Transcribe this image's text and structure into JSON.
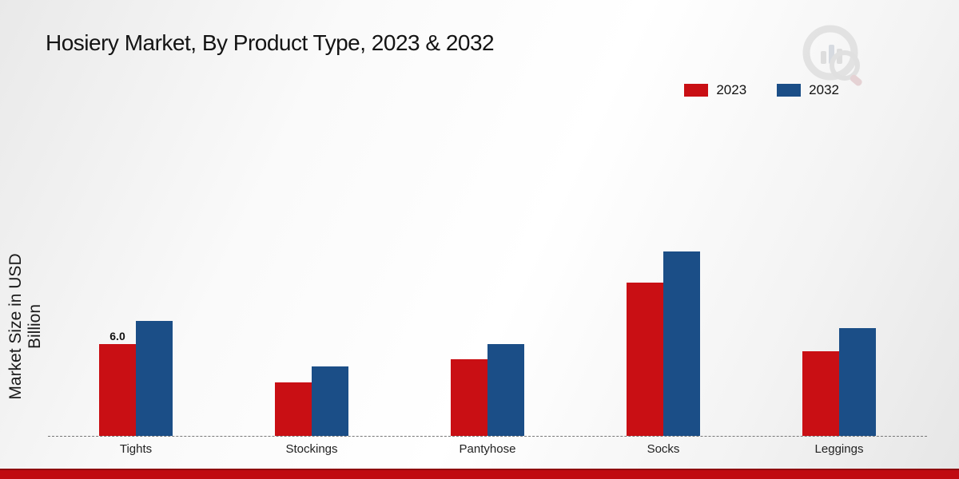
{
  "title": "Hosiery Market, By Product Type, 2023 & 2032",
  "ylabel": "Market Size in USD Billion",
  "colors": {
    "series_2023": "#c90f14",
    "series_2032": "#1b4e87",
    "footer_strip": "#c00b10",
    "watermark_gray": "#d2d2d2"
  },
  "legend": {
    "position": "top-right",
    "items": [
      {
        "label": "2023",
        "color": "#c90f14"
      },
      {
        "label": "2032",
        "color": "#1b4e87"
      }
    ]
  },
  "chart_data": {
    "type": "bar",
    "title": "Hosiery Market, By Product Type, 2023 & 2032",
    "xlabel": "",
    "ylabel": "Market Size in USD Billion",
    "categories": [
      "Tights",
      "Stockings",
      "Pantyhose",
      "Socks",
      "Leggings"
    ],
    "series": [
      {
        "name": "2023",
        "color": "#c90f14",
        "values": [
          6.0,
          3.5,
          5.0,
          10.0,
          5.5
        ]
      },
      {
        "name": "2032",
        "color": "#1b4e87",
        "values": [
          7.5,
          4.5,
          6.0,
          12.0,
          7.0
        ]
      }
    ],
    "ylim": [
      0,
      13
    ],
    "grid": false,
    "baseline_style": "dashed",
    "legend_position": "top-right",
    "bar_labels": [
      {
        "series": "2023",
        "category": "Tights",
        "text": "6.0"
      }
    ]
  }
}
